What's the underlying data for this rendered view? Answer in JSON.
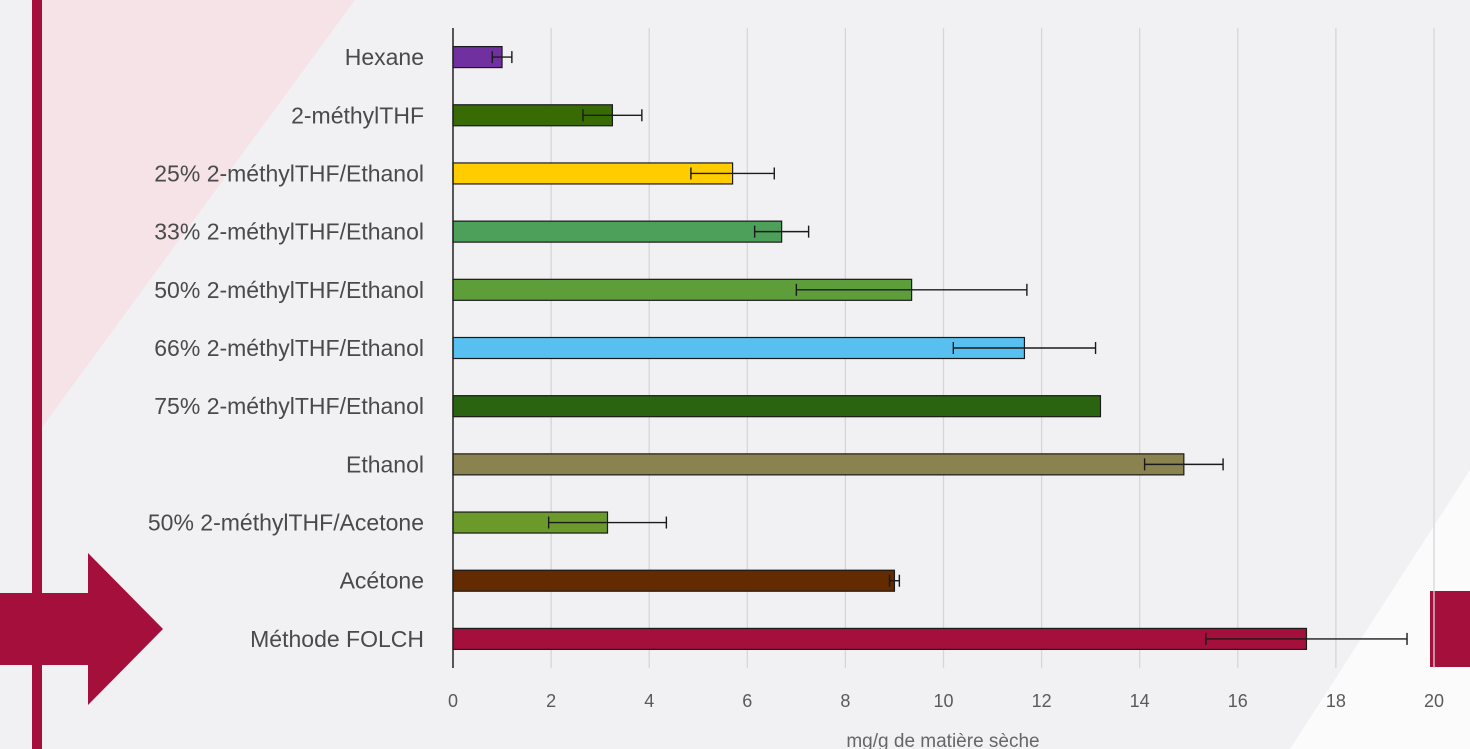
{
  "chart_data": {
    "type": "bar",
    "orientation": "horizontal",
    "title": "",
    "xlabel": "mg/g de matière sèche",
    "ylabel": "",
    "xlim": [
      0,
      20
    ],
    "xticks": [
      "0",
      "2",
      "4",
      "6",
      "8",
      "10",
      "12",
      "14",
      "16",
      "18",
      "20"
    ],
    "grid": "vertical",
    "categories": [
      "Hexane",
      "2-méthylTHF",
      "25% 2-méthylTHF/Ethanol",
      "33% 2-méthylTHF/Ethanol",
      "50% 2-méthylTHF/Ethanol",
      "66% 2-méthylTHF/Ethanol",
      "75% 2-méthylTHF/Ethanol",
      "Ethanol",
      "50% 2-méthylTHF/Acetone",
      "Acétone",
      "Méthode FOLCH"
    ],
    "values": [
      1.0,
      3.25,
      5.7,
      6.7,
      9.35,
      11.65,
      13.2,
      14.9,
      3.15,
      9.0,
      17.4
    ],
    "errors": [
      0.2,
      0.6,
      0.85,
      0.55,
      2.35,
      1.45,
      0.0,
      0.8,
      1.2,
      0.1,
      2.05
    ],
    "colors": [
      "#7030a0",
      "#386b04",
      "#ffcc00",
      "#4da05a",
      "#5d9e3a",
      "#58c0f0",
      "#2b6410",
      "#8a8350",
      "#6b9a2a",
      "#632b00",
      "#a50f3c"
    ]
  },
  "decor": {
    "accent": "#a50f3c",
    "tint": "#f5e3e8",
    "shapes": [
      "vertical-stripe",
      "arrow-right-icon",
      "corner-square"
    ]
  }
}
